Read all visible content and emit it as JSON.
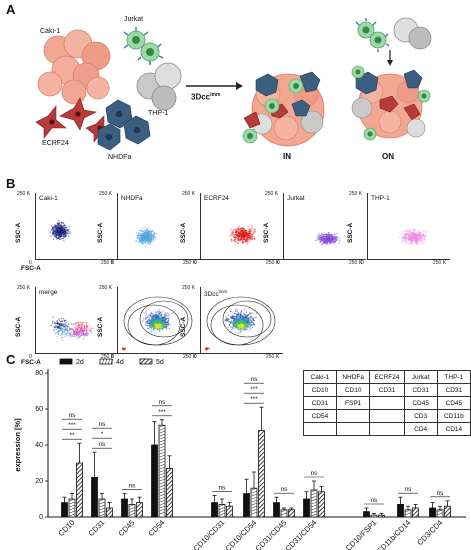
{
  "panels": {
    "a": "A",
    "b": "B",
    "c": "C"
  },
  "schematic": {
    "cells": [
      "Caki-1",
      "Jurkat",
      "ECRF24",
      "THP-1",
      "NHDFa"
    ],
    "arrow_label": "3Dcc",
    "arrow_label_sup": "imm",
    "in_label": "IN",
    "on_label": "ON"
  },
  "flow": {
    "ylabel": "SSC-A",
    "xlabel": "FSC-A",
    "tick_0": "0",
    "tick_250": "250 K",
    "row1": [
      "Caki-1",
      "NHDFa",
      "ECRF24",
      "Jurkat",
      "THP-1"
    ],
    "row2": [
      "merge",
      "",
      "3Dcc"
    ],
    "row2_sup": "imm",
    "colors": {
      "Caki-1": "#1a237e",
      "NHDFa": "#4fa3e0",
      "ECRF24": "#e21a1a",
      "Jurkat": "#8a4fd8",
      "THP-1": "#f08ae6"
    }
  },
  "marker_table": {
    "header": [
      "Caki-1",
      "NHDFa",
      "ECRF24",
      "Jurkat",
      "THP-1"
    ],
    "rows": [
      [
        "CD10",
        "CD10",
        "CD31",
        "CD31",
        "CD31"
      ],
      [
        "CD31",
        "FSP1",
        "",
        "CD45",
        "CD45"
      ],
      [
        "CD54",
        "",
        "",
        "CD3",
        "CD11b"
      ],
      [
        "",
        "",
        "",
        "CD4",
        "CD14"
      ]
    ]
  },
  "chart_data": {
    "type": "bar",
    "ylabel": "expression [%]",
    "ylim": [
      0,
      80
    ],
    "yticks": [
      0,
      20,
      40,
      60,
      80
    ],
    "legend": [
      "2d",
      "4d",
      "5d"
    ],
    "legend_position": "top-left",
    "categories": [
      "CD10",
      "CD31",
      "CD45",
      "CD54",
      "CD10/CD31",
      "CD10/CD54",
      "CD31/CD45",
      "CD31/CD54",
      "CD10/FSP1",
      "CD11b/CD14",
      "CD3/CD4"
    ],
    "series": [
      {
        "name": "2d",
        "values": [
          8,
          22,
          10,
          40,
          8,
          13,
          8,
          10,
          3,
          7,
          5
        ],
        "errors": [
          3,
          14,
          3,
          13,
          4,
          8,
          3,
          4,
          2,
          4,
          3
        ]
      },
      {
        "name": "4d",
        "values": [
          10,
          10,
          7,
          51,
          7,
          16,
          4,
          15,
          1,
          4,
          4
        ],
        "errors": [
          3,
          3,
          3,
          3,
          3,
          9,
          1,
          5,
          1,
          2,
          2
        ]
      },
      {
        "name": "5d",
        "values": [
          30,
          5,
          8,
          27,
          6,
          48,
          4,
          14,
          1,
          5,
          6
        ],
        "errors": [
          11,
          3,
          3,
          7,
          2,
          13,
          1,
          3,
          1,
          2,
          3
        ]
      }
    ],
    "significance": [
      {
        "category": "CD10",
        "labels": [
          "**",
          "***",
          "ns"
        ]
      },
      {
        "category": "CD31",
        "labels": [
          "ns",
          "*",
          "ns"
        ]
      },
      {
        "category": "CD45",
        "labels": [
          "ns"
        ]
      },
      {
        "category": "CD54",
        "labels": [
          "***",
          "ns"
        ]
      },
      {
        "category": "CD10/CD31",
        "labels": [
          "ns"
        ]
      },
      {
        "category": "CD10/CD54",
        "labels": [
          "***",
          "***",
          "ns"
        ]
      },
      {
        "category": "CD31/CD45",
        "labels": [
          "ns"
        ]
      },
      {
        "category": "CD31/CD54",
        "labels": [
          "ns"
        ]
      },
      {
        "category": "CD10/FSP1",
        "labels": [
          "ns"
        ]
      },
      {
        "category": "CD11b/CD14",
        "labels": [
          "ns"
        ]
      },
      {
        "category": "CD3/CD4",
        "labels": [
          "ns"
        ]
      }
    ]
  }
}
